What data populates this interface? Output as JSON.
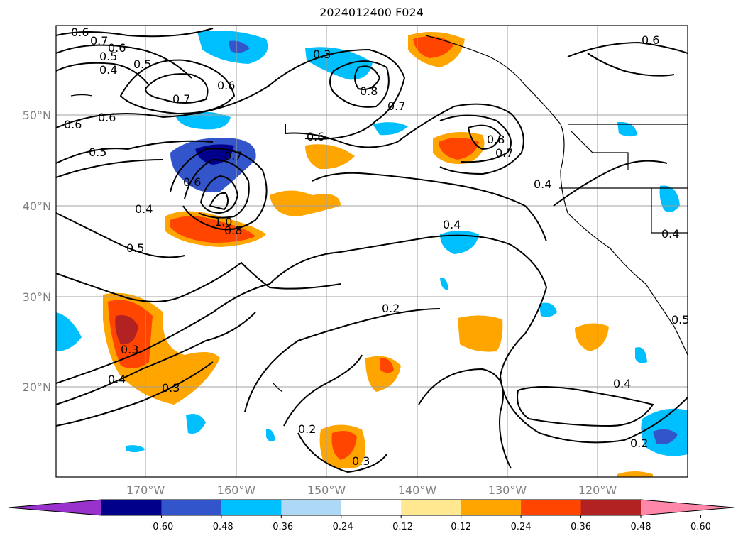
{
  "title": "2024012400 F024",
  "chart_data": {
    "type": "map",
    "title": "2024012400 F024",
    "lat_labels": [
      "50°N",
      "40°N",
      "30°N",
      "20°N"
    ],
    "lon_labels": [
      "170°W",
      "160°W",
      "150°W",
      "140°W",
      "130°W",
      "120°W"
    ],
    "colorbar": {
      "ticks": [
        "-0.60",
        "-0.48",
        "-0.36",
        "-0.24",
        "-0.12",
        "0.12",
        "0.24",
        "0.36",
        "0.48",
        "0.60"
      ],
      "colors": [
        "#9932cc",
        "#00008b",
        "#3355cc",
        "#00bfff",
        "#add8f6",
        "#ffffff",
        "#ffe890",
        "#ffa500",
        "#ff4500",
        "#b22222",
        "#ff88aa"
      ]
    },
    "contour_labels": [
      "0.6",
      "0.7",
      "0.6",
      "0.5",
      "0.4",
      "0.5",
      "0.7",
      "0.6",
      "0.3",
      "0.8",
      "0.7",
      "0.6",
      "0.6",
      "0.6",
      "0.5",
      "0.6",
      "0.7",
      "0.6",
      "0.8",
      "0.7",
      "0.4",
      "0.4",
      "1.0",
      "0.8",
      "0.5",
      "0.4",
      "0.4",
      "0.2",
      "0.3",
      "0.4",
      "0.3",
      "0.2",
      "0.3",
      "0.4",
      "0.2",
      "0.5"
    ]
  }
}
